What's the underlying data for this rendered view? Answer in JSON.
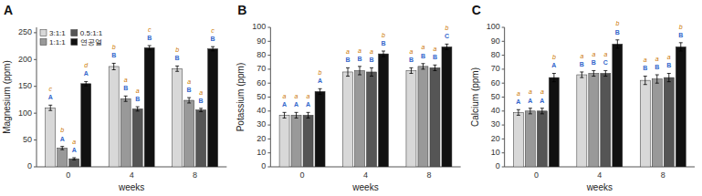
{
  "chart_data": [
    {
      "type": "bar",
      "title": "A",
      "xlabel": "weeks",
      "ylabel": "Magnesium (ppm)",
      "categories": [
        "0",
        "4",
        "8"
      ],
      "ylim": [
        0,
        260
      ],
      "yticks": [
        0,
        50,
        100,
        150,
        200,
        250
      ],
      "grid": false,
      "legend": "upper left",
      "annotation_colors": [
        "#3366cc",
        "#cc7700"
      ],
      "series": [
        {
          "name": "3:1:1",
          "color": "#d8d8d8",
          "values": [
            110,
            187,
            183
          ],
          "errors": [
            5,
            6,
            5
          ],
          "letters": [
            [
              "A",
              "c"
            ],
            [
              "B",
              "b"
            ],
            [
              "B",
              "b"
            ]
          ]
        },
        {
          "name": "1:1:1",
          "color": "#999999",
          "values": [
            35,
            127,
            124
          ],
          "errors": [
            3,
            5,
            5
          ],
          "letters": [
            [
              "A",
              "b"
            ],
            [
              "B",
              "a"
            ],
            [
              "B",
              "a"
            ]
          ]
        },
        {
          "name": "0.5:1:1",
          "color": "#555555",
          "values": [
            15,
            108,
            106
          ],
          "errors": [
            2,
            4,
            3
          ],
          "letters": [
            [
              "A",
              "a"
            ],
            [
              "B",
              "a"
            ],
            [
              "B",
              "a"
            ]
          ]
        },
        {
          "name": "연공열",
          "color": "#111111",
          "values": [
            155,
            222,
            220
          ],
          "errors": [
            4,
            4,
            4
          ],
          "letters": [
            [
              "A",
              "d"
            ],
            [
              "B",
              "c"
            ],
            [
              "B",
              "c"
            ]
          ]
        }
      ]
    },
    {
      "type": "bar",
      "title": "B",
      "xlabel": "weeks",
      "ylabel": "Potassium (ppm)",
      "categories": [
        "0",
        "4",
        "8"
      ],
      "ylim": [
        0,
        100
      ],
      "yticks": [
        0,
        10,
        20,
        30,
        40,
        50,
        60,
        70,
        80,
        90,
        100
      ],
      "grid": false,
      "annotation_colors": [
        "#3366cc",
        "#cc7700"
      ],
      "series": [
        {
          "name": "3:1:1",
          "color": "#d8d8d8",
          "values": [
            37,
            68,
            69
          ],
          "errors": [
            2,
            3,
            2
          ],
          "letters": [
            [
              "A",
              "a"
            ],
            [
              "B",
              "a"
            ],
            [
              "B",
              "a"
            ]
          ]
        },
        {
          "name": "1:1:1",
          "color": "#999999",
          "values": [
            37,
            69,
            72
          ],
          "errors": [
            2,
            3,
            2
          ],
          "letters": [
            [
              "A",
              "a"
            ],
            [
              "B",
              "a"
            ],
            [
              "B",
              "a"
            ]
          ]
        },
        {
          "name": "0.5:1:1",
          "color": "#555555",
          "values": [
            37,
            68,
            71
          ],
          "errors": [
            2,
            3,
            2
          ],
          "letters": [
            [
              "A",
              "a"
            ],
            [
              "B",
              "a"
            ],
            [
              "B",
              "a"
            ]
          ]
        },
        {
          "name": "연공열",
          "color": "#111111",
          "values": [
            54,
            81,
            86
          ],
          "errors": [
            2,
            2,
            2
          ],
          "letters": [
            [
              "A",
              "b"
            ],
            [
              "B",
              "b"
            ],
            [
              "C",
              "b"
            ]
          ]
        }
      ]
    },
    {
      "type": "bar",
      "title": "C",
      "xlabel": "weeks",
      "ylabel": "Calcium (ppm)",
      "categories": [
        "0",
        "4",
        "8"
      ],
      "ylim": [
        0,
        100
      ],
      "yticks": [
        0,
        10,
        20,
        30,
        40,
        50,
        60,
        70,
        80,
        90,
        100
      ],
      "grid": false,
      "annotation_colors": [
        "#3366cc",
        "#cc7700"
      ],
      "series": [
        {
          "name": "3:1:1",
          "color": "#d8d8d8",
          "values": [
            39,
            66,
            62
          ],
          "errors": [
            2,
            2,
            3
          ],
          "letters": [
            [
              "A",
              "a"
            ],
            [
              "B",
              "a"
            ],
            [
              "B",
              "a"
            ]
          ]
        },
        {
          "name": "1:1:1",
          "color": "#999999",
          "values": [
            40,
            67,
            63
          ],
          "errors": [
            2,
            2,
            3
          ],
          "letters": [
            [
              "A",
              "a"
            ],
            [
              "B",
              "a"
            ],
            [
              "B",
              "a"
            ]
          ]
        },
        {
          "name": "0.5:1:1",
          "color": "#555555",
          "values": [
            40,
            67,
            64
          ],
          "errors": [
            2,
            2,
            3
          ],
          "letters": [
            [
              "A",
              "a"
            ],
            [
              "C",
              "a"
            ],
            [
              "B",
              "a"
            ]
          ]
        },
        {
          "name": "연공열",
          "color": "#111111",
          "values": [
            64,
            88,
            86
          ],
          "errors": [
            3,
            3,
            3
          ],
          "letters": [
            [
              "A",
              "b"
            ],
            [
              "B",
              "b"
            ],
            [
              "B",
              "b"
            ]
          ]
        }
      ]
    }
  ]
}
